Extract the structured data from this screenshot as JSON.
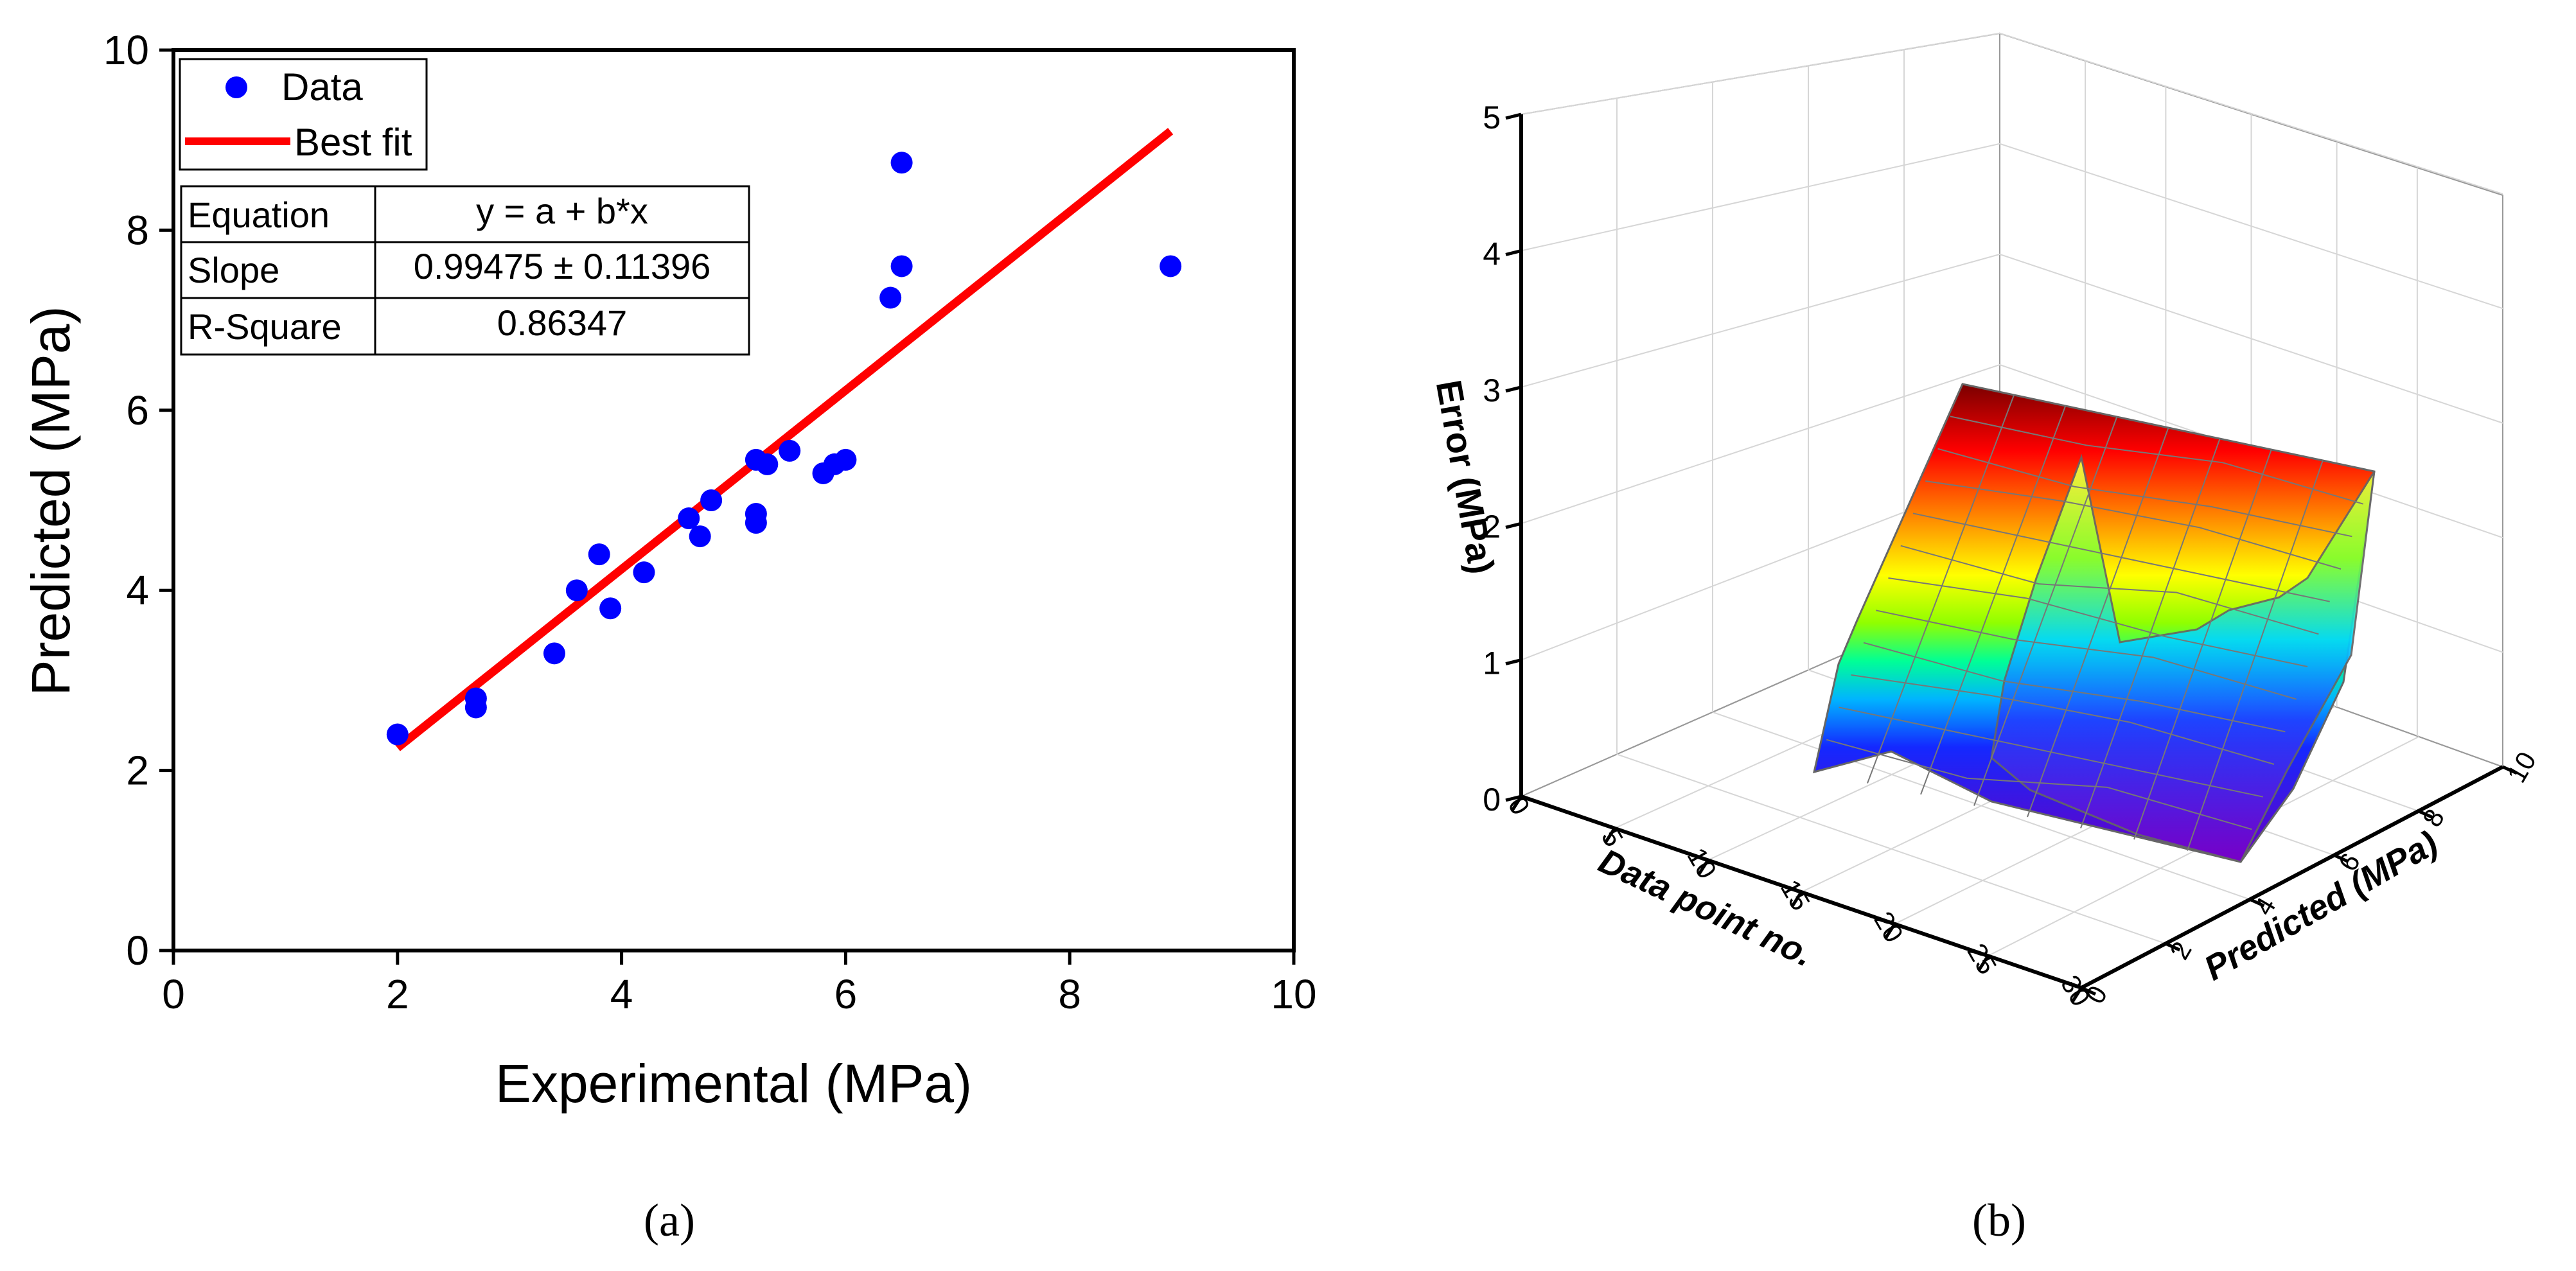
{
  "chart_data": [
    {
      "panel_label": "(a)",
      "type": "scatter",
      "xlabel": "Experimental (MPa)",
      "ylabel": "Predicted (MPa)",
      "xlim": [
        0,
        10
      ],
      "ylim": [
        0,
        10
      ],
      "x_ticks": [
        "0",
        "2",
        "4",
        "6",
        "8",
        "10"
      ],
      "y_ticks": [
        "0",
        "2",
        "4",
        "6",
        "8",
        "10"
      ],
      "legend": {
        "position": "top-left",
        "entries": [
          "Data",
          "Best fit"
        ]
      },
      "colors": {
        "data": "#0000ff",
        "fit": "#ff0000"
      },
      "series": [
        {
          "name": "Data",
          "points": [
            [
              2.0,
              2.4
            ],
            [
              2.7,
              2.7
            ],
            [
              2.7,
              2.8
            ],
            [
              3.4,
              3.3
            ],
            [
              3.6,
              4.0
            ],
            [
              3.8,
              4.4
            ],
            [
              3.9,
              3.8
            ],
            [
              4.2,
              4.2
            ],
            [
              4.6,
              4.8
            ],
            [
              4.7,
              4.6
            ],
            [
              4.8,
              5.0
            ],
            [
              5.2,
              4.75
            ],
            [
              5.2,
              4.85
            ],
            [
              5.2,
              5.45
            ],
            [
              5.3,
              5.4
            ],
            [
              5.5,
              5.55
            ],
            [
              5.8,
              5.3
            ],
            [
              5.9,
              5.4
            ],
            [
              6.0,
              5.45
            ],
            [
              6.4,
              7.25
            ],
            [
              6.5,
              7.6
            ],
            [
              6.5,
              8.75
            ],
            [
              8.9,
              7.6
            ]
          ]
        },
        {
          "name": "Best fit",
          "line": [
            [
              2.0,
              2.25
            ],
            [
              8.9,
              9.1
            ]
          ]
        }
      ],
      "table": [
        [
          "Equation",
          "y = a + b*x"
        ],
        [
          "Slope",
          "0.99475 ± 0.11396"
        ],
        [
          "R-Square",
          "0.86347"
        ]
      ]
    },
    {
      "panel_label": "(b)",
      "type": "surface3d",
      "zlabel": "Error (MPa)",
      "xlabel": "Data point no.",
      "ylabel": "Predicted (MPa)",
      "z_ticks": [
        "0",
        "1",
        "2",
        "3",
        "4",
        "5"
      ],
      "x_ticks": [
        "0",
        "5",
        "10",
        "15",
        "20",
        "25",
        "30"
      ],
      "y_ticks": [
        "0",
        "2",
        "4",
        "6",
        "8",
        "10"
      ],
      "zlim": [
        0,
        5
      ],
      "xlim": [
        0,
        30
      ],
      "ylim": [
        0,
        10
      ],
      "colormap": [
        "#5a00b4",
        "#1428ff",
        "#00a0ff",
        "#00ff96",
        "#a0ff00",
        "#ffff00",
        "#ff9600",
        "#ff0000",
        "#7a0000"
      ]
    }
  ]
}
